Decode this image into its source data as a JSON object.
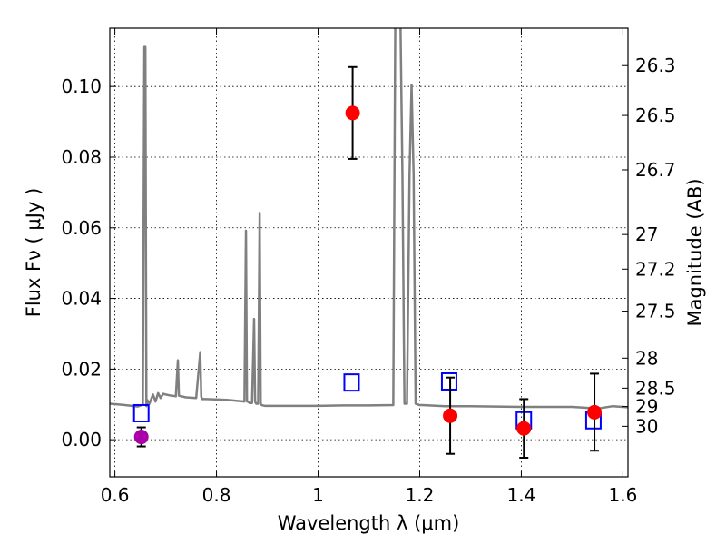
{
  "chart_data": {
    "type": "scatter",
    "xlabel": "Wavelength  λ (μm)",
    "ylabel": "Flux  Fν  ( μJy )",
    "y2label": "Magnitude (AB)",
    "xlim": [
      0.59,
      1.61
    ],
    "ylim": [
      -0.0105,
      0.1165
    ],
    "grid": true,
    "x_ticks": [
      0.6,
      0.8,
      1.0,
      1.2,
      1.4,
      1.6
    ],
    "x_tick_labels": [
      "0.6",
      "0.8",
      "1",
      "1.2",
      "1.4",
      "1.6"
    ],
    "y_ticks": [
      0.0,
      0.02,
      0.04,
      0.06,
      0.08,
      0.1
    ],
    "y_tick_labels": [
      "0.00",
      "0.02",
      "0.04",
      "0.06",
      "0.08",
      "0.10"
    ],
    "y2_ticks": [
      {
        "flux": 0.1059,
        "label": "26.3"
      },
      {
        "flux": 0.0918,
        "label": "26.5"
      },
      {
        "flux": 0.0764,
        "label": "26.7"
      },
      {
        "flux": 0.0581,
        "label": "27"
      },
      {
        "flux": 0.0483,
        "label": "27.2"
      },
      {
        "flux": 0.0364,
        "label": "27.5"
      },
      {
        "flux": 0.0231,
        "label": "28"
      },
      {
        "flux": 0.0146,
        "label": "28.5"
      },
      {
        "flux": 0.0094,
        "label": "29"
      },
      {
        "flux": 0.0038,
        "label": "30"
      }
    ],
    "model_spectrum": {
      "color": "#808080",
      "x": [
        0.59,
        0.62,
        0.645,
        0.655,
        0.658,
        0.66,
        0.662,
        0.664,
        0.668,
        0.675,
        0.68,
        0.685,
        0.69,
        0.695,
        0.7,
        0.71,
        0.72,
        0.724,
        0.726,
        0.728,
        0.74,
        0.76,
        0.768,
        0.77,
        0.772,
        0.78,
        0.82,
        0.855,
        0.858,
        0.86,
        0.862,
        0.865,
        0.87,
        0.874,
        0.876,
        0.878,
        0.882,
        0.885,
        0.887,
        0.889,
        0.895,
        1.0,
        1.05,
        1.1,
        1.148,
        1.152,
        1.154,
        1.158,
        1.162,
        1.166,
        1.17,
        1.175,
        1.18,
        1.184,
        1.188,
        1.192,
        1.196,
        1.2,
        1.205,
        1.25,
        1.3,
        1.4,
        1.5,
        1.55,
        1.58,
        1.61
      ],
      "y": [
        0.0102,
        0.0098,
        0.0094,
        0.0099,
        0.1112,
        0.1112,
        0.0095,
        0.0112,
        0.0102,
        0.0128,
        0.0108,
        0.0132,
        0.0118,
        0.013,
        0.0128,
        0.0125,
        0.0123,
        0.0225,
        0.0125,
        0.0124,
        0.012,
        0.0118,
        0.0248,
        0.0122,
        0.0115,
        0.0115,
        0.0113,
        0.0108,
        0.0592,
        0.0108,
        0.0108,
        0.0104,
        0.0104,
        0.0342,
        0.0108,
        0.0102,
        0.0102,
        0.0642,
        0.0102,
        0.0098,
        0.0096,
        0.0096,
        0.0097,
        0.0097,
        0.0098,
        0.12,
        0.12,
        0.12,
        0.12,
        0.075,
        0.0102,
        0.0102,
        0.075,
        0.1005,
        0.075,
        0.0102,
        0.01,
        0.0098,
        0.0098,
        0.0095,
        0.0095,
        0.0093,
        0.0093,
        0.0088,
        0.0095,
        0.0092
      ]
    },
    "series": [
      {
        "marker": "square",
        "color": "#0000ff",
        "points": [
          {
            "x": 0.652,
            "y": 0.0075
          },
          {
            "x": 1.066,
            "y": 0.0162
          },
          {
            "x": 1.258,
            "y": 0.0165
          },
          {
            "x": 1.405,
            "y": 0.0055
          },
          {
            "x": 1.542,
            "y": 0.0055
          }
        ]
      },
      {
        "marker": "circle",
        "color": "#ff0000",
        "points": [
          {
            "x": 1.068,
            "y": 0.0925,
            "yerr": 0.013
          },
          {
            "x": 1.26,
            "y": 0.0068,
            "yerr": 0.0108
          },
          {
            "x": 1.405,
            "y": 0.0032,
            "yerr": 0.0083
          },
          {
            "x": 1.544,
            "y": 0.0078,
            "yerr": 0.0109
          }
        ]
      },
      {
        "marker": "circle",
        "color": "#aa00aa",
        "points": [
          {
            "x": 0.652,
            "y": 0.0008,
            "yerr": 0.0027
          }
        ]
      }
    ]
  }
}
